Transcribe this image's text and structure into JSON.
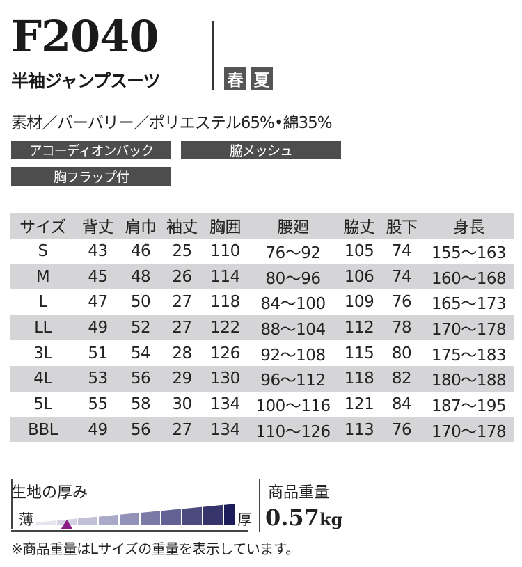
{
  "product": {
    "code": "F2040",
    "name": "半袖ジャンプスーツ",
    "seasons": [
      "春",
      "夏"
    ],
    "material": "素材／バーバリー／ポリエステル65%•綿35%"
  },
  "features": [
    "アコーディオンバック",
    "脇メッシュ",
    "胸フラップ付"
  ],
  "size_table": {
    "headers": [
      "サイズ",
      "背丈",
      "肩巾",
      "袖丈",
      "胸囲",
      "腰廻",
      "脇丈",
      "股下",
      "身長"
    ],
    "rows": [
      [
        "S",
        "43",
        "46",
        "25",
        "110",
        "76〜92",
        "105",
        "74",
        "155〜163"
      ],
      [
        "M",
        "45",
        "48",
        "26",
        "114",
        "80〜96",
        "106",
        "74",
        "160〜168"
      ],
      [
        "L",
        "47",
        "50",
        "27",
        "118",
        "84〜100",
        "109",
        "76",
        "165〜173"
      ],
      [
        "LL",
        "49",
        "52",
        "27",
        "122",
        "88〜104",
        "112",
        "78",
        "170〜178"
      ],
      [
        "3L",
        "51",
        "54",
        "28",
        "126",
        "92〜108",
        "115",
        "80",
        "175〜183"
      ],
      [
        "4L",
        "53",
        "56",
        "29",
        "130",
        "96〜112",
        "118",
        "82",
        "180〜188"
      ],
      [
        "5L",
        "55",
        "58",
        "30",
        "134",
        "100〜116",
        "121",
        "84",
        "187〜195"
      ],
      [
        "BBL",
        "49",
        "56",
        "27",
        "134",
        "110〜126",
        "113",
        "76",
        "170〜178"
      ]
    ]
  },
  "thickness": {
    "label": "生地の厚み",
    "thin_label": "薄",
    "thick_label": "厚",
    "levels": 10,
    "selected_level": 2,
    "colors": [
      "#e4e4ee",
      "#d3d3e3",
      "#c1c1d7",
      "#aaaac8",
      "#9292b8",
      "#7a7aa6",
      "#626294",
      "#4b4b80",
      "#35356c",
      "#1c1c5a"
    ],
    "marker_color": "#8a1c86"
  },
  "weight": {
    "label": "商品重量",
    "value": "0.57",
    "unit": "kg"
  },
  "note": "※商品重量はLサイズの重量を表示しています。"
}
